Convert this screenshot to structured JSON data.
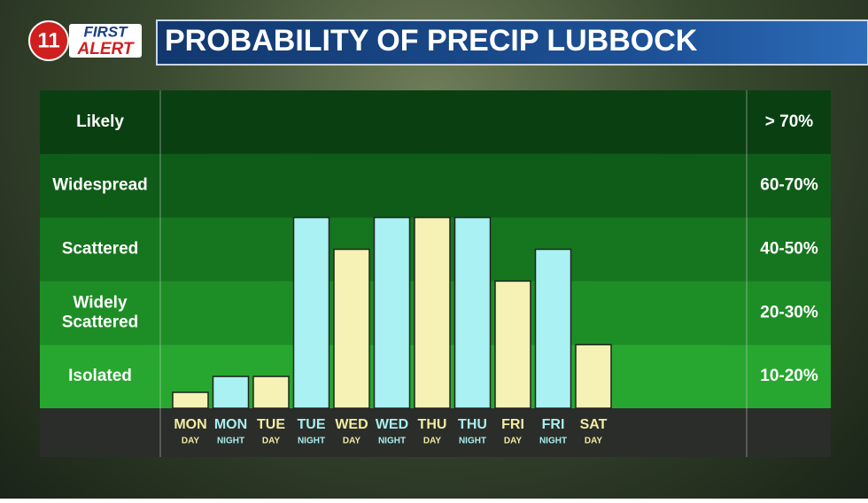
{
  "logo": {
    "number": "11",
    "line1": "FIRST",
    "line2": "ALERT"
  },
  "chart_data": {
    "type": "bar",
    "title": "PROBABILITY OF PRECIP LUBBOCK",
    "bands": [
      {
        "label": "Isolated",
        "range": "10-20%",
        "color": "#27a72f"
      },
      {
        "label": "Widely Scattered",
        "range": "20-30%",
        "color": "#1d8e26"
      },
      {
        "label": "Scattered",
        "range": "40-50%",
        "color": "#16761f"
      },
      {
        "label": "Widespread",
        "range": "60-70%",
        "color": "#0f5c18"
      },
      {
        "label": "Likely",
        "range": "> 70%",
        "color": "#0a4011"
      }
    ],
    "categories": [
      "MON",
      "MON",
      "TUE",
      "TUE",
      "WED",
      "WED",
      "THU",
      "THU",
      "FRI",
      "FRI",
      "SAT"
    ],
    "sublabels": [
      "DAY",
      "NIGHT",
      "DAY",
      "NIGHT",
      "DAY",
      "NIGHT",
      "DAY",
      "NIGHT",
      "DAY",
      "NIGHT",
      "DAY"
    ],
    "values": [
      0.25,
      0.5,
      0.5,
      3,
      2.5,
      3,
      3,
      3,
      2,
      2.5,
      1
    ],
    "colors": {
      "DAY": "#f6f1b4",
      "NIGHT": "#a9f1f2"
    },
    "label_colors": {
      "DAY": "#f3eca2",
      "NIGHT": "#a9eef0"
    },
    "ylim": [
      0,
      5
    ]
  }
}
